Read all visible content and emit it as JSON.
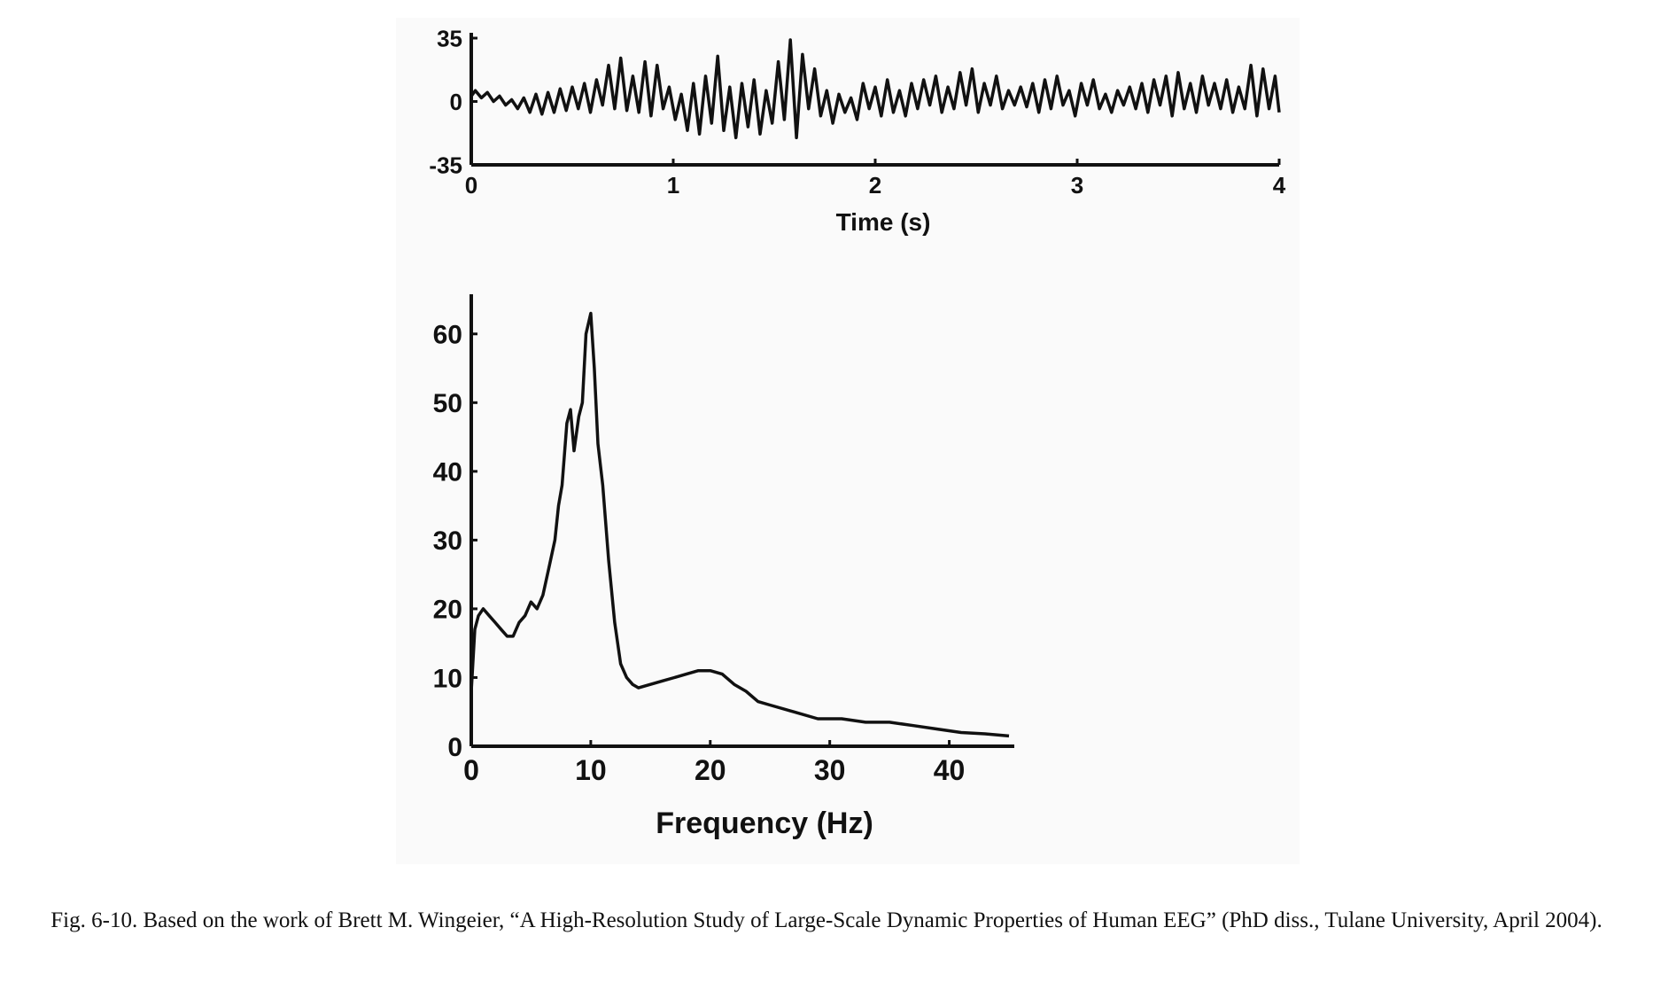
{
  "figure": {
    "caption": "Fig. 6-10. Based on the work of Brett M. Wingeier, “A High-Resolution Study of Large-Scale Dynamic Properties of Human EEG” (PhD diss., Tulane University, April 2004)."
  },
  "colors": {
    "line": "#111111",
    "panel": "#fafafa",
    "background": "#ffffff"
  },
  "chart_data": [
    {
      "type": "line",
      "title": "",
      "xlabel": "Time (s)",
      "ylabel": "",
      "xlim": [
        0,
        4
      ],
      "ylim": [
        -35,
        35
      ],
      "x_ticks": [
        0,
        1,
        2,
        3,
        4
      ],
      "y_ticks": [
        -35,
        0,
        35
      ],
      "x_tick_labels": [
        "0",
        "1",
        "2",
        "3",
        "4"
      ],
      "y_tick_labels": [
        "-35",
        "0",
        "35"
      ],
      "grid": false,
      "series": [
        {
          "x": [
            0,
            0.02,
            0.05,
            0.08,
            0.11,
            0.14,
            0.17,
            0.2,
            0.23,
            0.26,
            0.29,
            0.32,
            0.35,
            0.38,
            0.41,
            0.44,
            0.47,
            0.5,
            0.53,
            0.56,
            0.59,
            0.62,
            0.65,
            0.68,
            0.71,
            0.74,
            0.77,
            0.8,
            0.83,
            0.86,
            0.89,
            0.92,
            0.95,
            0.98,
            1.01,
            1.04,
            1.07,
            1.1,
            1.13,
            1.16,
            1.19,
            1.22,
            1.25,
            1.28,
            1.31,
            1.34,
            1.37,
            1.4,
            1.43,
            1.46,
            1.49,
            1.52,
            1.55,
            1.58,
            1.61,
            1.64,
            1.67,
            1.7,
            1.73,
            1.76,
            1.79,
            1.82,
            1.85,
            1.88,
            1.91,
            1.94,
            1.97,
            2.0,
            2.03,
            2.06,
            2.09,
            2.12,
            2.15,
            2.18,
            2.21,
            2.24,
            2.27,
            2.3,
            2.33,
            2.36,
            2.39,
            2.42,
            2.45,
            2.48,
            2.51,
            2.54,
            2.57,
            2.6,
            2.63,
            2.66,
            2.69,
            2.72,
            2.75,
            2.78,
            2.81,
            2.84,
            2.87,
            2.9,
            2.93,
            2.96,
            2.99,
            3.02,
            3.05,
            3.08,
            3.11,
            3.14,
            3.17,
            3.2,
            3.23,
            3.26,
            3.29,
            3.32,
            3.35,
            3.38,
            3.41,
            3.44,
            3.47,
            3.5,
            3.53,
            3.56,
            3.59,
            3.62,
            3.65,
            3.68,
            3.71,
            3.74,
            3.77,
            3.8,
            3.83,
            3.86,
            3.89,
            3.92,
            3.95,
            3.98,
            4.0
          ],
          "values": [
            3,
            6,
            2,
            5,
            0,
            3,
            -2,
            1,
            -4,
            2,
            -6,
            4,
            -7,
            5,
            -6,
            7,
            -5,
            8,
            -4,
            10,
            -6,
            12,
            -2,
            20,
            -4,
            24,
            -5,
            14,
            -6,
            22,
            -8,
            20,
            -4,
            8,
            -10,
            4,
            -16,
            10,
            -18,
            14,
            -12,
            25,
            -16,
            8,
            -20,
            10,
            -14,
            12,
            -18,
            6,
            -12,
            22,
            -10,
            34,
            -20,
            26,
            -4,
            18,
            -8,
            6,
            -12,
            4,
            -6,
            2,
            -10,
            10,
            -4,
            8,
            -8,
            12,
            -6,
            6,
            -8,
            10,
            -4,
            12,
            -2,
            14,
            -6,
            8,
            -4,
            16,
            -2,
            18,
            -6,
            10,
            -2,
            14,
            -4,
            6,
            -2,
            8,
            -3,
            10,
            -6,
            12,
            -4,
            14,
            -2,
            6,
            -8,
            10,
            -2,
            12,
            -4,
            4,
            -6,
            6,
            -2,
            8,
            -4,
            10,
            -6,
            12,
            -2,
            14,
            -8,
            16,
            -4,
            10,
            -6,
            14,
            -2,
            10,
            -4,
            12,
            -6,
            8,
            -4,
            20,
            -8,
            18,
            -4,
            14,
            -6
          ]
        }
      ]
    },
    {
      "type": "line",
      "title": "",
      "xlabel": "Frequency (Hz)",
      "ylabel": "",
      "xlim": [
        0,
        45
      ],
      "ylim": [
        0,
        65
      ],
      "x_ticks": [
        0,
        10,
        20,
        30,
        40
      ],
      "y_ticks": [
        0,
        10,
        20,
        30,
        40,
        50,
        60
      ],
      "x_tick_labels": [
        "0",
        "10",
        "20",
        "30",
        "40"
      ],
      "y_tick_labels": [
        "0",
        "10",
        "20",
        "30",
        "40",
        "50",
        "60"
      ],
      "grid": false,
      "series": [
        {
          "x": [
            0,
            0.3,
            0.6,
            1,
            1.5,
            2,
            2.5,
            3,
            3.5,
            4,
            4.5,
            5,
            5.5,
            6,
            6.5,
            7,
            7.3,
            7.6,
            8,
            8.3,
            8.6,
            9,
            9.3,
            9.6,
            10,
            10.3,
            10.6,
            11,
            11.5,
            12,
            12.5,
            13,
            13.5,
            14,
            15,
            16,
            17,
            18,
            19,
            20,
            21,
            22,
            23,
            24,
            25,
            27,
            29,
            31,
            33,
            35,
            37,
            39,
            41,
            43,
            45
          ],
          "values": [
            8,
            17,
            19,
            20,
            19,
            18,
            17,
            16,
            16,
            18,
            19,
            21,
            20,
            22,
            26,
            30,
            35,
            38,
            47,
            49,
            43,
            48,
            50,
            60,
            63,
            55,
            44,
            38,
            27,
            18,
            12,
            10,
            9,
            8.5,
            9,
            9.5,
            10,
            10.5,
            11,
            11,
            10.5,
            9,
            8,
            6.5,
            6,
            5,
            4,
            4,
            3.5,
            3.5,
            3,
            2.5,
            2,
            1.8,
            1.5
          ]
        }
      ]
    }
  ]
}
